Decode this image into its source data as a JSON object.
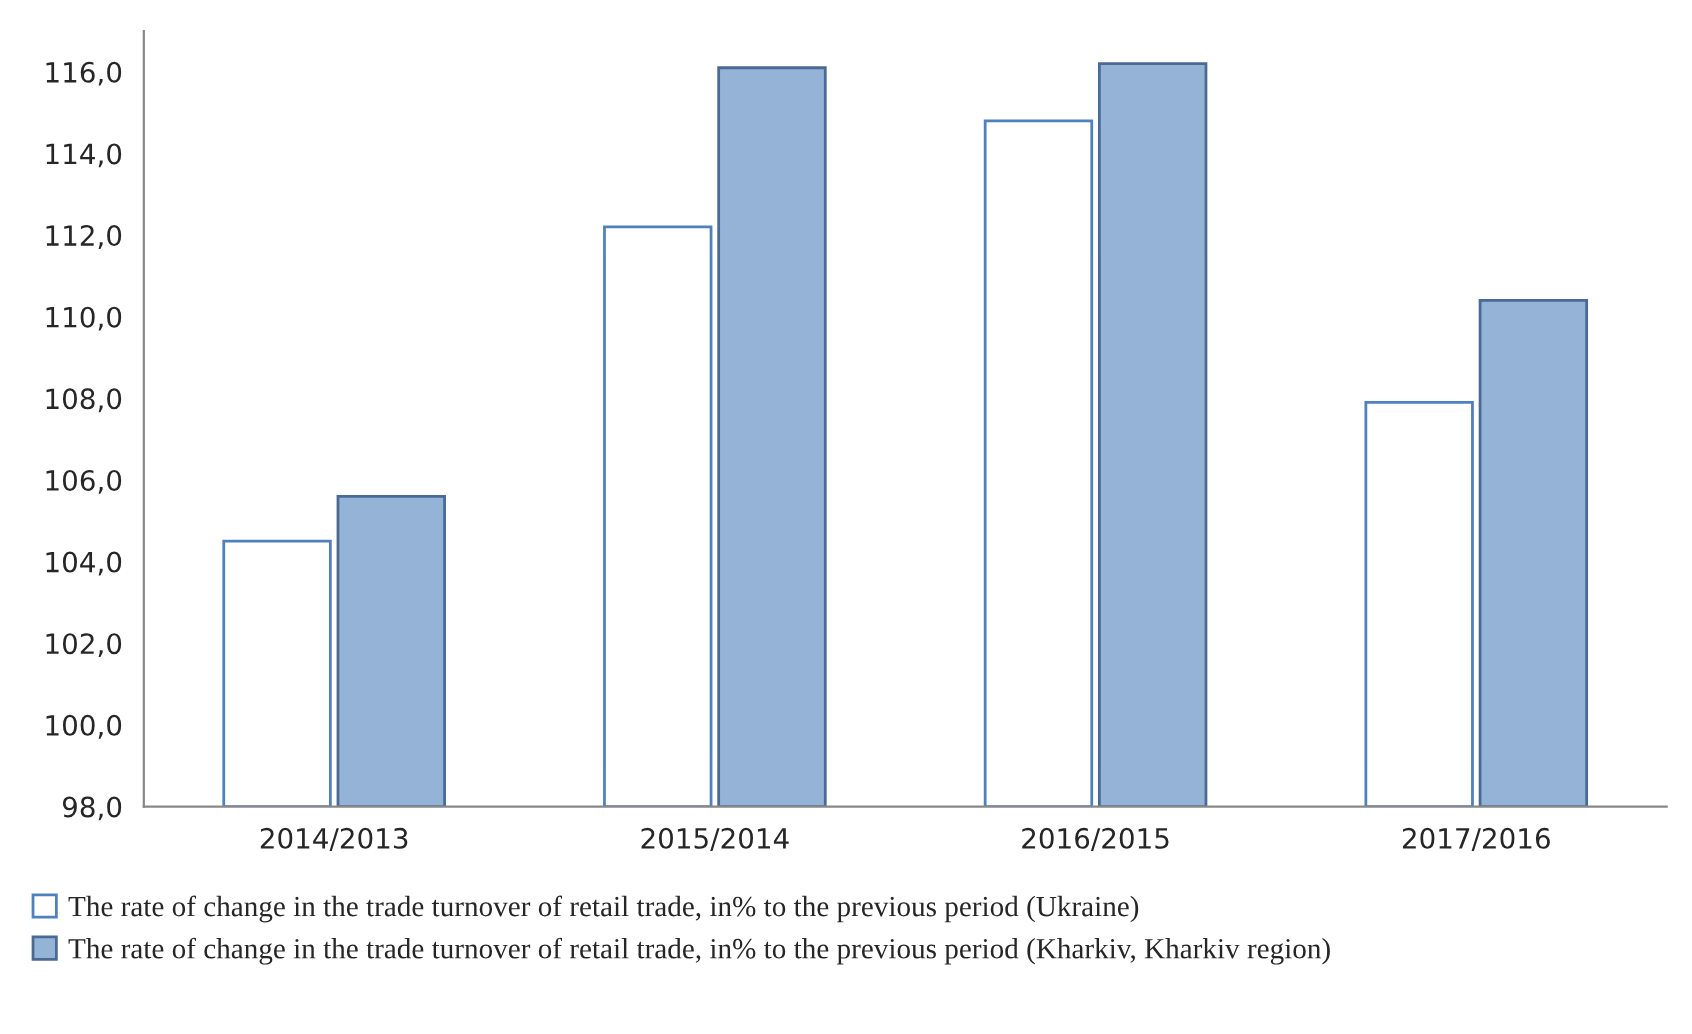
{
  "chart_data": {
    "type": "bar",
    "categories": [
      "2014/2013",
      "2015/2014",
      "2016/2015",
      "2017/2016"
    ],
    "series": [
      {
        "name": "The rate of change in the trade turnover of retail trade, in% to the previous period (Ukraine)",
        "color": "#ffffff",
        "values": [
          104.5,
          112.2,
          114.8,
          107.9
        ]
      },
      {
        "name": "The rate of change in the trade turnover of retail trade, in% to the previous period (Kharkiv, Kharkiv region)",
        "color": "#95b3d7",
        "values": [
          105.6,
          116.1,
          116.2,
          110.4
        ]
      }
    ],
    "ylim": [
      98,
      117
    ],
    "yticks": [
      {
        "value": 98,
        "label": "98,0"
      },
      {
        "value": 100,
        "label": "100,0"
      },
      {
        "value": 102,
        "label": "102,0"
      },
      {
        "value": 104,
        "label": "104,0"
      },
      {
        "value": 106,
        "label": "106,0"
      },
      {
        "value": 108,
        "label": "108,0"
      },
      {
        "value": 110,
        "label": "110,0"
      },
      {
        "value": 112,
        "label": "112,0"
      },
      {
        "value": 114,
        "label": "114,0"
      },
      {
        "value": 116,
        "label": "116,0"
      }
    ],
    "grid": false,
    "legend": "bottom"
  }
}
